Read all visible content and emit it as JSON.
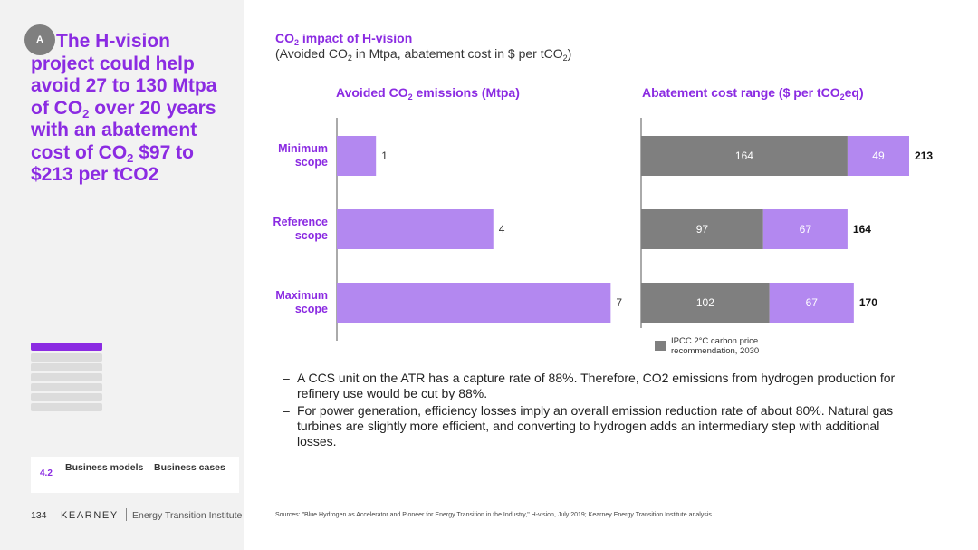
{
  "badge": "A",
  "headline": {
    "part1": "The H-vision project could help avoid 27 to 130 Mtpa of CO",
    "sub1": "2",
    "part2": " over 20 years with an abatement cost of CO",
    "sub2": "2",
    "part3": " $97 to $213 per tCO2"
  },
  "nav": {
    "items": 7,
    "active_index": 0
  },
  "section": {
    "number": "4.2",
    "label": "Business models – Business cases"
  },
  "footer": {
    "page": "134",
    "logo": "KEARNEY",
    "institute": "Energy Transition Institute"
  },
  "title": {
    "t1": "CO",
    "sub": "2",
    "t2": " impact of H-vision"
  },
  "subtitle": {
    "t1": "(Avoided CO",
    "sub1": "2",
    "t2": " in Mtpa, abatement cost in $ per tCO",
    "sub2": "2",
    "t3": ")"
  },
  "panel_left": {
    "t1": "Avoided CO",
    "sub": "2",
    "t2": " emissions (Mtpa)"
  },
  "panel_right": {
    "t1": "Abatement cost range ($ per tCO",
    "sub": "2",
    "t2": "eq)"
  },
  "colors": {
    "accent": "#8b2be2",
    "bar_purple": "#b388f0",
    "bar_gray": "#7f7f7f",
    "label_purple": "#8b2be2"
  },
  "chart_data": [
    {
      "type": "bar",
      "orientation": "horizontal",
      "categories": [
        "Minimum scope",
        "Reference scope",
        "Maximum scope"
      ],
      "values": [
        1,
        4,
        7
      ],
      "title": "Avoided CO2 emissions (Mtpa)",
      "xlim": [
        0,
        7.2
      ],
      "grid": false
    },
    {
      "type": "bar",
      "orientation": "horizontal",
      "stacked": true,
      "categories": [
        "Minimum scope",
        "Reference scope",
        "Maximum scope"
      ],
      "series": [
        {
          "name": "IPCC 2°C carbon price recommendation, 2030",
          "values": [
            164,
            97,
            102
          ]
        },
        {
          "values": [
            49,
            67,
            67
          ]
        }
      ],
      "totals": [
        213,
        164,
        170
      ],
      "title": "Abatement cost range ($ per tCO2eq)",
      "xlim": [
        0,
        230
      ],
      "grid": false
    }
  ],
  "legend": {
    "label": "IPCC 2°C carbon price recommendation, 2030"
  },
  "bullets": [
    "A CCS unit on the ATR has a capture rate of 88%. Therefore, CO2 emissions from hydrogen production for refinery use would be cut by 88%.",
    "For power generation, efficiency losses imply an overall emission reduction rate of about 80%. Natural gas turbines are slightly more efficient, and converting to hydrogen adds an intermediary step with additional losses."
  ],
  "sources": "Sources: \"Blue Hydrogen as Accelerator and Pioneer for Energy Transition in the Industry,\" H-vision, July 2019; Kearney Energy Transition Institute analysis"
}
